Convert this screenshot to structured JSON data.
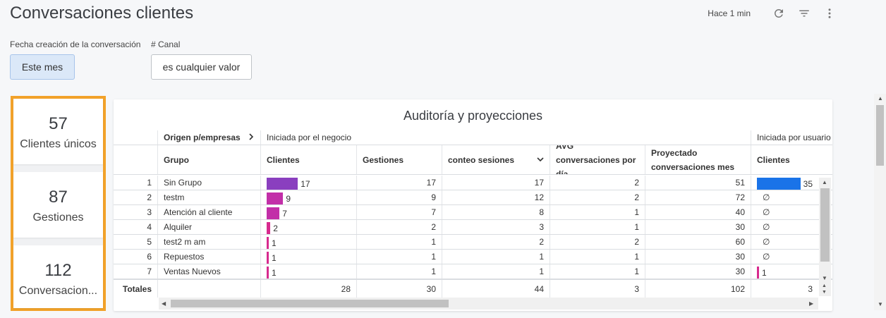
{
  "header": {
    "title": "Conversaciones clientes",
    "updated": "Hace 1 min",
    "icons": [
      "refresh-icon",
      "filter-icon",
      "more-vert-icon"
    ]
  },
  "filters": [
    {
      "label": "Fecha creación de la conversación",
      "value": "Este mes"
    },
    {
      "label": "# Canal",
      "value": "es cualquier valor"
    }
  ],
  "kpis": [
    {
      "value": "57",
      "label": "Clientes únicos"
    },
    {
      "value": "87",
      "label": "Gestiones"
    },
    {
      "value": "112",
      "label": "Conversacion..."
    }
  ],
  "table": {
    "title": "Auditoría y proyecciones",
    "pivot_field": "Origen p/empresas",
    "pivot_groups": [
      "Iniciada por el negocio",
      "Iniciada por usuario"
    ],
    "columns": [
      "Grupo",
      "Clientes",
      "Gestiones",
      "conteo sesiones",
      "AVG conversaciones por día",
      "Proyectado conversaciones mes",
      "Clientes"
    ],
    "rows": [
      {
        "n": "1",
        "grupo": "Sin Grupo",
        "clientes": 17,
        "gestiones": "17",
        "sesiones": "17",
        "avg": "2",
        "proy": "51",
        "clientes_u": 35
      },
      {
        "n": "2",
        "grupo": "testm",
        "clientes": 9,
        "gestiones": "9",
        "sesiones": "12",
        "avg": "2",
        "proy": "72",
        "clientes_u": null
      },
      {
        "n": "3",
        "grupo": "Atención al cliente",
        "clientes": 7,
        "gestiones": "7",
        "sesiones": "8",
        "avg": "1",
        "proy": "40",
        "clientes_u": null
      },
      {
        "n": "4",
        "grupo": "Alquiler",
        "clientes": 2,
        "gestiones": "2",
        "sesiones": "3",
        "avg": "1",
        "proy": "30",
        "clientes_u": null
      },
      {
        "n": "5",
        "grupo": "test2 m am",
        "clientes": 1,
        "gestiones": "1",
        "sesiones": "2",
        "avg": "2",
        "proy": "60",
        "clientes_u": null
      },
      {
        "n": "6",
        "grupo": "Repuestos",
        "clientes": 1,
        "gestiones": "1",
        "sesiones": "1",
        "avg": "1",
        "proy": "30",
        "clientes_u": null
      },
      {
        "n": "7",
        "grupo": "Ventas Nuevos",
        "clientes": 1,
        "gestiones": "1",
        "sesiones": "1",
        "avg": "1",
        "proy": "30",
        "clientes_u": 1
      }
    ],
    "null_symbol": "∅",
    "totals": {
      "label": "Totales",
      "clientes": "28",
      "gestiones": "30",
      "sesiones": "44",
      "avg": "3",
      "proy": "102",
      "clientes_u": "3"
    },
    "colors": {
      "bar_purple": "#8a3fbf",
      "bar_magenta": "#c22fa8",
      "bar_pink": "#d72a8e",
      "bar_blue": "#1a73e8"
    }
  }
}
